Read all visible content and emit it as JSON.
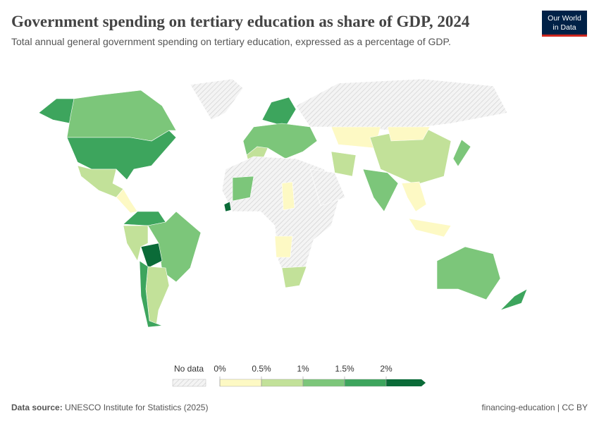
{
  "header": {
    "title": "Government spending on tertiary education as share of GDP, 2024",
    "subtitle": "Total annual general government spending on tertiary education, expressed as a percentage of GDP."
  },
  "logo": {
    "line1": "Our World",
    "line2": "in Data"
  },
  "legend": {
    "no_data": "No data",
    "ticks": [
      "0%",
      "0.5%",
      "1%",
      "1.5%",
      "2%"
    ],
    "colors": [
      "#fdf9c4",
      "#c2e199",
      "#7cc67a",
      "#3da55d",
      "#0b6b38"
    ]
  },
  "footer": {
    "source_label": "Data source:",
    "source": "UNESCO Institute for Statistics (2025)",
    "license": "financing-education | CC BY"
  }
}
